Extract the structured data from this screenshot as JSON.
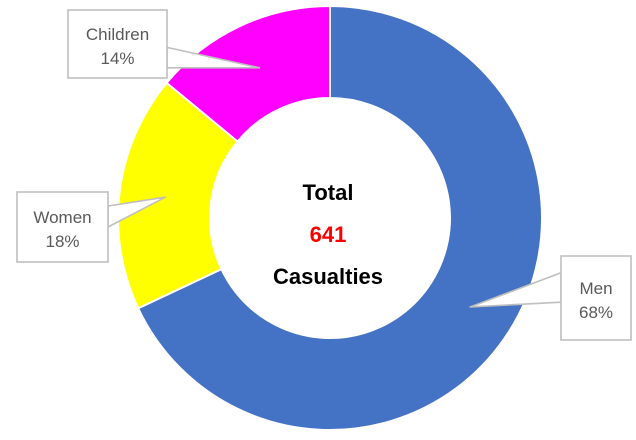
{
  "chart_data": {
    "type": "pie",
    "variant": "donut",
    "categories": [
      "Men",
      "Women",
      "Children"
    ],
    "values": [
      68,
      18,
      14
    ],
    "unit": "%",
    "labels": [
      "Men\n68%",
      "Women\n18%",
      "Children\n14%"
    ],
    "colors": [
      "#4472C4",
      "#FFFF00",
      "#FF00FF"
    ],
    "center_label": {
      "line1": "Total",
      "line2": "641",
      "line3": "Casualties",
      "highlight_color": "#FF0000"
    },
    "title": "",
    "legend": "none"
  }
}
